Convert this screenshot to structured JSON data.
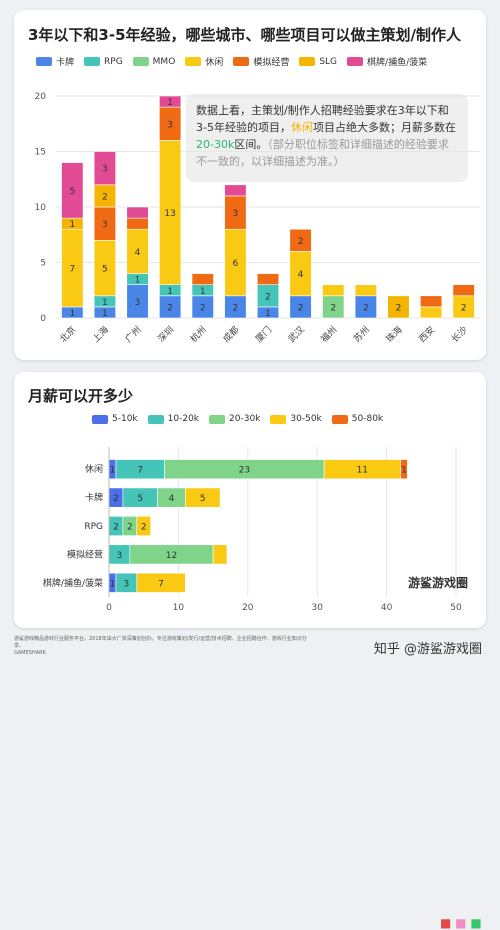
{
  "top": {
    "title": "3年以下和3-5年经验，哪些城市、哪些项目可以做主策划/制作人",
    "note": {
      "p1": "数据上看，主策划/制作人招聘经验要求在3年以下和3-5年经验的项目，",
      "hl1": "休闲",
      "p2": "项目占绝大多数；月薪多数在",
      "hl2": "20-30k",
      "p3": "区间。",
      "p4": "（部分职位标签和详细描述的经验要求不一致的，以详细描述为准。）"
    }
  },
  "bottom": {
    "title": "月薪可以开多少"
  },
  "footer": {
    "text": "游鲨游戏精品游戏行业服务平台，2018年由大厂资深策划创办，专注游戏策划/发行/运营/技术招聘、企业招聘合作、游戏行业知识分享。",
    "brand": "GAMESHARK"
  },
  "watermark": "知乎 @游鲨游戏圈",
  "logo_text": "游鲨游戏圈",
  "colors": {
    "卡牌": "#4a86e8",
    "RPG": "#45c4b8",
    "MMO": "#7fd48a",
    "休闲": "#f9c914",
    "模拟经营": "#f06a14",
    "SLG": "#f4b400",
    "棋牌/捕鱼/菠菜": "#e24a94",
    "5-10k": "#4a6fe8",
    "10-20k": "#45c4b8",
    "20-30k": "#7fd48a",
    "30-50k": "#f9c914",
    "50-80k": "#f06a14"
  },
  "chart_data": [
    {
      "type": "bar",
      "stacked": true,
      "categories": [
        "北京",
        "上海",
        "广州",
        "深圳",
        "杭州",
        "成都",
        "厦门",
        "武汉",
        "福州",
        "苏州",
        "珠海",
        "西安",
        "长沙"
      ],
      "ylim": [
        0,
        20
      ],
      "yticks": [
        0,
        5,
        10,
        15,
        20
      ],
      "legend_position": "top",
      "series": [
        {
          "name": "卡牌",
          "values": [
            1,
            1,
            3,
            2,
            2,
            2,
            1,
            2,
            0,
            2,
            0,
            0,
            0
          ]
        },
        {
          "name": "RPG",
          "values": [
            0,
            1,
            1,
            1,
            1,
            0,
            2,
            0,
            0,
            0,
            0,
            0,
            0
          ]
        },
        {
          "name": "MMO",
          "values": [
            0,
            0,
            0,
            0,
            0,
            0,
            0,
            0,
            2,
            0,
            0,
            0,
            0
          ]
        },
        {
          "name": "休闲",
          "values": [
            7,
            5,
            4,
            13,
            0,
            6,
            0,
            4,
            1,
            1,
            0,
            1,
            2
          ]
        },
        {
          "name": "模拟经营",
          "values": [
            0,
            3,
            1,
            3,
            1,
            3,
            1,
            2,
            0,
            0,
            0,
            1,
            1
          ]
        },
        {
          "name": "SLG",
          "values": [
            1,
            2,
            0,
            0,
            0,
            0,
            0,
            0,
            0,
            0,
            2,
            0,
            0
          ]
        },
        {
          "name": "棋牌/捕鱼/菠菜",
          "values": [
            5,
            3,
            1,
            1,
            0,
            1,
            0,
            0,
            0,
            0,
            0,
            0,
            0
          ]
        }
      ],
      "labels": [
        [
          "1",
          "",
          "",
          "7",
          "",
          "1",
          "5"
        ],
        [
          "1",
          "1",
          "",
          "5",
          "3",
          "2",
          "3"
        ],
        [
          "3",
          "1",
          "",
          "4",
          "",
          "",
          ""
        ],
        [
          "2",
          "1",
          "",
          "13",
          "3",
          "",
          "1"
        ],
        [
          "2",
          "1",
          "",
          "",
          "",
          "",
          ""
        ],
        [
          "2",
          "",
          "",
          "6",
          "3",
          "",
          ""
        ],
        [
          "1",
          "2",
          "",
          "",
          "",
          "",
          ""
        ],
        [
          "2",
          "",
          "",
          "4",
          "2",
          "",
          ""
        ],
        [
          "",
          "",
          "2",
          "",
          "",
          "",
          ""
        ],
        [
          "2",
          "",
          "",
          "",
          "",
          "",
          ""
        ],
        [
          "",
          "",
          "",
          "",
          "",
          "2",
          ""
        ],
        [
          "",
          "",
          "",
          "",
          "",
          "",
          ""
        ],
        [
          "",
          "",
          "",
          "2",
          "",
          "",
          ""
        ]
      ]
    },
    {
      "type": "bar",
      "orientation": "horizontal",
      "stacked": true,
      "categories": [
        "休闲",
        "卡牌",
        "RPG",
        "模拟经营",
        "棋牌/捕鱼/菠菜"
      ],
      "xlim": [
        0,
        50
      ],
      "xticks": [
        0,
        10,
        20,
        30,
        40,
        50
      ],
      "legend_position": "top",
      "series": [
        {
          "name": "5-10k",
          "values": [
            1,
            2,
            0,
            0,
            1
          ]
        },
        {
          "name": "10-20k",
          "values": [
            7,
            5,
            2,
            3,
            3
          ]
        },
        {
          "name": "20-30k",
          "values": [
            23,
            4,
            2,
            12,
            0
          ]
        },
        {
          "name": "30-50k",
          "values": [
            11,
            5,
            2,
            2,
            7
          ]
        },
        {
          "name": "50-80k",
          "values": [
            1,
            0,
            0,
            0,
            0
          ]
        }
      ],
      "labels": [
        [
          "1",
          "7",
          "23",
          "11",
          "1"
        ],
        [
          "2",
          "5",
          "4",
          "5",
          ""
        ],
        [
          "",
          "2",
          "2",
          "2",
          ""
        ],
        [
          "",
          "3",
          "12",
          "",
          ""
        ],
        [
          "1",
          "3",
          "",
          "7",
          ""
        ]
      ]
    }
  ]
}
